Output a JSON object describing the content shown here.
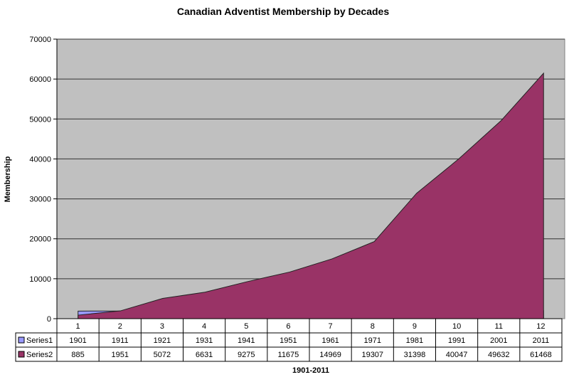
{
  "chart_data": {
    "type": "area",
    "title": "Canadian Adventist Membership by Decades",
    "xlabel": "1901-2011",
    "ylabel": "Membership",
    "ylim": [
      0,
      70000
    ],
    "yticks": [
      0,
      10000,
      20000,
      30000,
      40000,
      50000,
      60000,
      70000
    ],
    "grid": true,
    "categories": [
      "1",
      "2",
      "3",
      "4",
      "5",
      "6",
      "7",
      "8",
      "9",
      "10",
      "11",
      "12"
    ],
    "series": [
      {
        "name": "Series1",
        "color": "#9999ff",
        "values": [
          1901,
          1911,
          1921,
          1931,
          1941,
          1951,
          1961,
          1971,
          1981,
          1991,
          2001,
          2011
        ]
      },
      {
        "name": "Series2",
        "color": "#993366",
        "values": [
          885,
          1951,
          5072,
          6631,
          9275,
          11675,
          14969,
          19307,
          31398,
          40047,
          49632,
          61468
        ]
      }
    ],
    "legend": "data-table",
    "plot_background": "#c0c0c0"
  }
}
